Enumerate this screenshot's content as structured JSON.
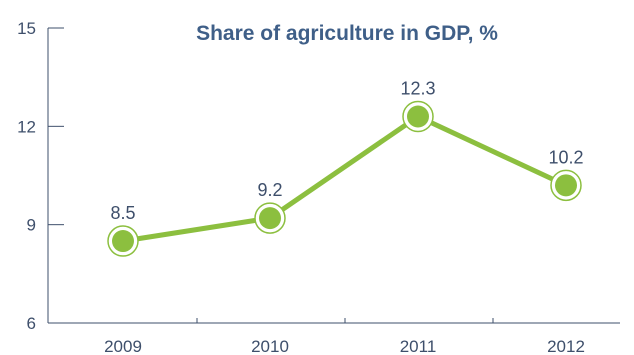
{
  "chart_data": {
    "type": "line",
    "title": "Share of agriculture in GDP, %",
    "x": [
      "2009",
      "2010",
      "2011",
      "2012"
    ],
    "series": [
      {
        "values": [
          8.5,
          9.2,
          12.3,
          10.2
        ],
        "labels": [
          "8.5",
          "9.2",
          "12.3",
          "10.2"
        ]
      }
    ],
    "ylim": [
      6,
      15
    ],
    "yticks": [
      "6",
      "9",
      "12",
      "15"
    ],
    "grid": false,
    "colors": {
      "line": "#8cbf3f",
      "text": "#3e4f6b",
      "title": "#3f5f88"
    }
  }
}
